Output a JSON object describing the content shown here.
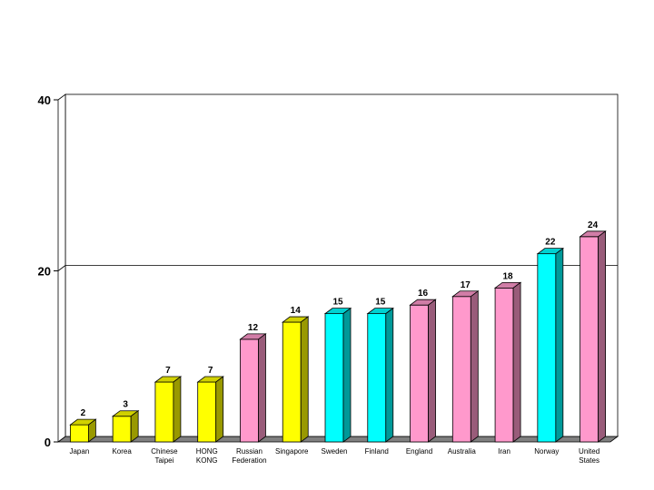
{
  "chart_data": {
    "type": "bar",
    "categories": [
      [
        "Japan"
      ],
      [
        "Korea"
      ],
      [
        "Chinese",
        "Taipei"
      ],
      [
        "HONG",
        "KONG"
      ],
      [
        "Russian",
        "Federation"
      ],
      [
        "Singapore"
      ],
      [
        "Sweden"
      ],
      [
        "Finland"
      ],
      [
        "England"
      ],
      [
        "Australia"
      ],
      [
        "Iran"
      ],
      [
        "Norway"
      ],
      [
        "United",
        "States"
      ]
    ],
    "values": [
      2,
      3,
      7,
      7,
      12,
      14,
      15,
      15,
      16,
      17,
      18,
      22,
      24
    ],
    "bar_colors": [
      "#ffff00",
      "#ffff00",
      "#ffff00",
      "#ffff00",
      "#ff99cc",
      "#ffff00",
      "#00ffff",
      "#00ffff",
      "#ff99cc",
      "#ff99cc",
      "#ff99cc",
      "#00ffff",
      "#ff99cc"
    ],
    "y_ticks": [
      0,
      20,
      40
    ],
    "ylim": [
      0,
      40
    ],
    "gridlines": [
      20
    ],
    "title": "",
    "xlabel": "",
    "ylabel": ""
  }
}
